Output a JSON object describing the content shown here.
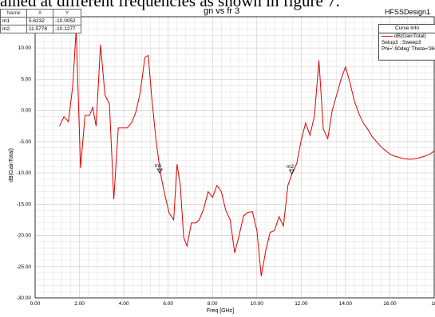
{
  "page": {
    "top_text": "ained at different frequencies as shown in figure 7."
  },
  "header": {
    "design_label": "HFSSDesign1",
    "design_mark": "ᵢ"
  },
  "marker_table": {
    "headers": [
      "Name",
      "X",
      "Y"
    ],
    "rows": [
      [
        "m1",
        "5.6232",
        "-10.0052"
      ],
      [
        "m2",
        "11.5778",
        "-10.1277"
      ]
    ]
  },
  "curve_info": {
    "title": "Curve Info",
    "lines": [
      "dB(GainTotal)",
      "Setup3 : Sweep3",
      "Phi='-90deg' Theta='360deg'"
    ]
  },
  "colors": {
    "trace": "#e00000",
    "grid": "#c8c8c8",
    "axis": "#000000"
  },
  "chart_data": {
    "type": "line",
    "title": "gn vs fr 3",
    "xlabel": "Freq [GHz]",
    "ylabel": "dB(GainTotal)",
    "xlim": [
      0,
      18
    ],
    "ylim": [
      -30,
      15
    ],
    "x_ticks": [
      "0.00",
      "2.00",
      "4.00",
      "6.00",
      "8.00",
      "10.00",
      "12.00",
      "14.00",
      "16.00",
      "18"
    ],
    "y_ticks": [
      "-30.00",
      "-25.00",
      "-20.00",
      "-15.00",
      "-10.00",
      "-5.00",
      "0.00",
      "5.00",
      "10.00"
    ],
    "grid": true,
    "series": [
      {
        "name": "dB(GainTotal)",
        "x": [
          1.1,
          1.3,
          1.5,
          1.7,
          1.85,
          2.05,
          2.25,
          2.45,
          2.6,
          2.75,
          2.95,
          3.15,
          3.35,
          3.55,
          3.75,
          3.95,
          4.15,
          4.35,
          4.55,
          4.75,
          4.95,
          5.1,
          5.25,
          5.45,
          5.65,
          5.85,
          6.05,
          6.25,
          6.4,
          6.55,
          6.7,
          6.85,
          7.05,
          7.25,
          7.4,
          7.6,
          7.8,
          8.0,
          8.2,
          8.4,
          8.6,
          8.8,
          9.0,
          9.2,
          9.4,
          9.6,
          9.8,
          10.0,
          10.2,
          10.4,
          10.6,
          10.8,
          11.0,
          11.2,
          11.4,
          11.6,
          11.8,
          12.0,
          12.2,
          12.4,
          12.6,
          12.8,
          13.0,
          13.2,
          13.4,
          13.6,
          13.8,
          14.0,
          14.2,
          14.4,
          14.6,
          14.8,
          15.0,
          15.2,
          15.4,
          15.6,
          15.8,
          16.0,
          16.2,
          16.4,
          16.6,
          16.8,
          17.0,
          17.2,
          17.4,
          17.6,
          17.8,
          18.0
        ],
        "y": [
          -2.5,
          -1.0,
          -1.8,
          4.0,
          13.0,
          -9.2,
          -0.8,
          -0.8,
          0.5,
          -2.5,
          10.5,
          2.5,
          1.0,
          -14.2,
          -2.8,
          -2.8,
          -2.8,
          -2.0,
          -0.2,
          3.0,
          8.5,
          8.8,
          2.5,
          -4.7,
          -10.0,
          -13.5,
          -16.5,
          -17.5,
          -8.6,
          -12.0,
          -20.3,
          -21.7,
          -18.0,
          -18.0,
          -17.5,
          -15.8,
          -13.0,
          -13.9,
          -12.0,
          -13.0,
          -16.0,
          -17.5,
          -22.8,
          -20.0,
          -16.9,
          -16.3,
          -16.2,
          -19.2,
          -26.5,
          -22.5,
          -19.5,
          -19.2,
          -17.0,
          -18.5,
          -12.0,
          -10.0,
          -8.5,
          -4.8,
          -2.0,
          -4.0,
          -0.8,
          8.0,
          -3.0,
          -4.5,
          0.0,
          2.5,
          5.0,
          7.0,
          4.5,
          1.5,
          -0.5,
          -2.0,
          -3.0,
          -4.2,
          -5.0,
          -5.8,
          -6.4,
          -7.0,
          -7.3,
          -7.5,
          -7.7,
          -7.8,
          -7.8,
          -7.7,
          -7.5,
          -7.3,
          -7.0,
          -6.5
        ]
      }
    ],
    "markers": [
      {
        "label": "m1",
        "x": 5.6232,
        "y": -10.0052
      },
      {
        "label": "m2",
        "x": 11.5778,
        "y": -10.1277
      }
    ]
  }
}
